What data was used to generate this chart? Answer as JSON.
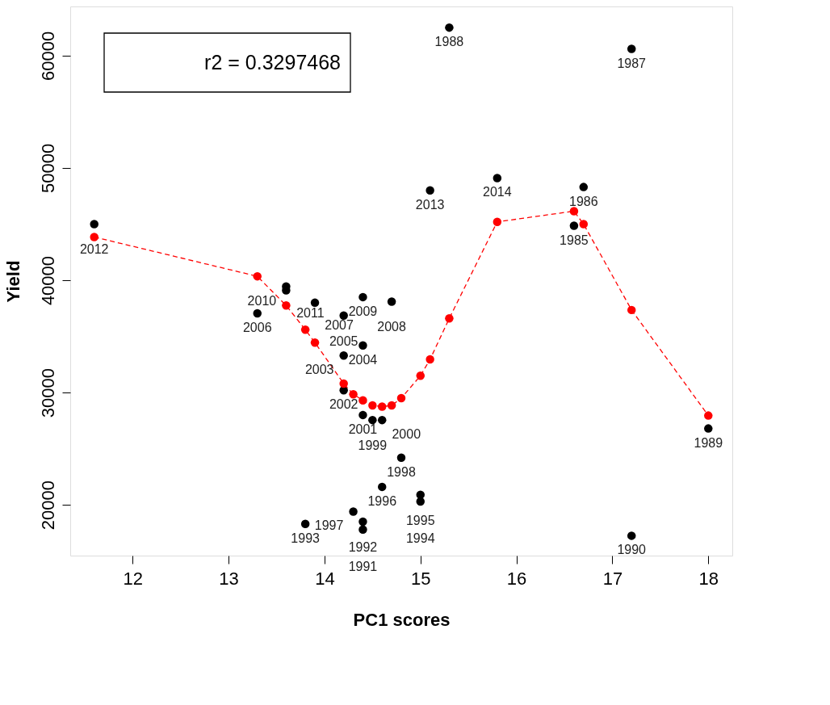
{
  "chart_data": {
    "type": "scatter",
    "xlabel": "PC1 scores",
    "ylabel": "Yield",
    "xlim": [
      11.35,
      18.25
    ],
    "ylim": [
      15480,
      64380
    ],
    "xticks": [
      12,
      13,
      14,
      15,
      16,
      17,
      18
    ],
    "yticks": [
      20000,
      30000,
      40000,
      50000,
      60000
    ],
    "grid": false,
    "marker": "circle",
    "series": [
      {
        "color": "#000000",
        "x": [
          11.6,
          13.3,
          13.6,
          13.6,
          13.9,
          14.4,
          14.2,
          14.4,
          14.2,
          14.2,
          14.7,
          14.4,
          14.5,
          14.6,
          14.8,
          14.6,
          15.0,
          15.0,
          14.3,
          13.8,
          14.4,
          14.4,
          17.2,
          18.0,
          15.3,
          17.2,
          15.1,
          15.8,
          16.7,
          16.6
        ],
        "values": [
          45000,
          37050,
          39450,
          39100,
          38000,
          38500,
          36850,
          34200,
          33300,
          30200,
          38100,
          28000,
          27550,
          27550,
          24200,
          21600,
          20900,
          20300,
          19400,
          18300,
          18500,
          17800,
          17250,
          26800,
          62500,
          60600,
          48000,
          49100,
          48300,
          44850
        ]
      },
      {
        "type": "line",
        "color": "#ff0000",
        "line_style": "dashed",
        "marker": "circle",
        "x": [
          11.6,
          13.3,
          13.6,
          13.8,
          13.9,
          14.2,
          14.3,
          14.4,
          14.5,
          14.6,
          14.7,
          14.8,
          15.0,
          15.1,
          15.3,
          15.8,
          16.6,
          16.7,
          17.2,
          18.0
        ],
        "values": [
          43850,
          40350,
          37750,
          35600,
          34450,
          30800,
          29850,
          29300,
          28850,
          28750,
          28850,
          29500,
          31500,
          32950,
          36600,
          45200,
          46150,
          45000,
          37350,
          27950
        ]
      }
    ],
    "annotations": [
      "r2 = 0.3297468",
      {
        "text": "2012",
        "x": 11.6,
        "y": 45000
      },
      {
        "text": "2006",
        "x": 13.3,
        "y": 37050
      },
      {
        "text": "2010",
        "x": 13.6,
        "y": 39450
      },
      {
        "text": "2011",
        "x": 13.6,
        "y": 39100
      },
      {
        "text": "2007",
        "x": 13.9,
        "y": 38000
      },
      {
        "text": "2009",
        "x": 14.4,
        "y": 38500
      },
      {
        "text": "2005",
        "x": 14.2,
        "y": 36850
      },
      {
        "text": "2004",
        "x": 14.4,
        "y": 34200
      },
      {
        "text": "2003",
        "x": 14.2,
        "y": 33300
      },
      {
        "text": "2002",
        "x": 14.2,
        "y": 30200
      },
      {
        "text": "2008",
        "x": 14.7,
        "y": 38100
      },
      {
        "text": "2001",
        "x": 14.4,
        "y": 28000
      },
      {
        "text": "1999",
        "x": 14.5,
        "y": 27550
      },
      {
        "text": "2000",
        "x": 14.6,
        "y": 27550
      },
      {
        "text": "1998",
        "x": 14.8,
        "y": 24200
      },
      {
        "text": "1996",
        "x": 14.6,
        "y": 21600
      },
      {
        "text": "1995",
        "x": 15.0,
        "y": 20900
      },
      {
        "text": "1994",
        "x": 15.0,
        "y": 20300
      },
      {
        "text": "1997",
        "x": 14.3,
        "y": 19400
      },
      {
        "text": "1993",
        "x": 13.8,
        "y": 18300
      },
      {
        "text": "1992",
        "x": 14.4,
        "y": 18500
      },
      {
        "text": "1991",
        "x": 14.4,
        "y": 17800
      },
      {
        "text": "1990",
        "x": 17.2,
        "y": 17250
      },
      {
        "text": "1989",
        "x": 18.0,
        "y": 26800
      },
      {
        "text": "1988",
        "x": 15.3,
        "y": 62500
      },
      {
        "text": "1987",
        "x": 17.2,
        "y": 60600
      },
      {
        "text": "2013",
        "x": 15.1,
        "y": 48000
      },
      {
        "text": "2014",
        "x": 15.8,
        "y": 49100
      },
      {
        "text": "1986",
        "x": 16.7,
        "y": 48300
      },
      {
        "text": "1985",
        "x": 16.6,
        "y": 44850
      }
    ]
  }
}
